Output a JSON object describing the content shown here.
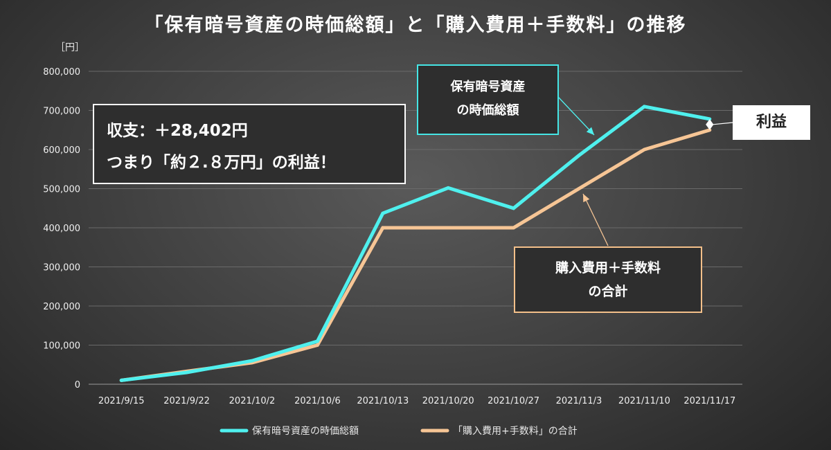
{
  "title": "「保有暗号資産の時価総額」と「購入費用＋手数料」の推移",
  "unit": "［円］",
  "summary": {
    "line1": "収支：＋28,402円",
    "line2": "つまり「約２.８万円」の利益！"
  },
  "callouts": {
    "market_value_line1": "保有暗号資産",
    "market_value_line2": "の時価総額",
    "cost_line1": "購入費用＋手数料",
    "cost_line2": "の合計",
    "profit": "利益"
  },
  "colors": {
    "market_value": "#4ff0ee",
    "cost": "#f6c595",
    "grid": "#6a6a6a"
  },
  "chart_data": {
    "type": "line",
    "title": "「保有暗号資産の時価総額」と「購入費用＋手数料」の推移",
    "ylabel": "［円］",
    "xlabel": "",
    "ylim": [
      0,
      800000
    ],
    "yticks": [
      "0",
      "100,000",
      "200,000",
      "300,000",
      "400,000",
      "500,000",
      "600,000",
      "700,000",
      "800,000"
    ],
    "ytick_values": [
      0,
      100000,
      200000,
      300000,
      400000,
      500000,
      600000,
      700000,
      800000
    ],
    "categories": [
      "2021/9/15",
      "2021/9/22",
      "2021/10/2",
      "2021/10/6",
      "2021/10/13",
      "2021/10/20",
      "2021/10/27",
      "2021/11/3",
      "2021/11/10",
      "2021/11/17"
    ],
    "grid": "horizontal",
    "legend_position": "bottom",
    "series": [
      {
        "name": "保有暗号資産の時価総額",
        "values": [
          10000,
          30000,
          60000,
          110000,
          437000,
          502000,
          450000,
          585000,
          710000,
          678000
        ]
      },
      {
        "name": "「購入費用+手数料」の合計",
        "values": [
          10000,
          33000,
          55000,
          100000,
          400000,
          400000,
          400000,
          500000,
          600000,
          650000
        ]
      }
    ]
  }
}
